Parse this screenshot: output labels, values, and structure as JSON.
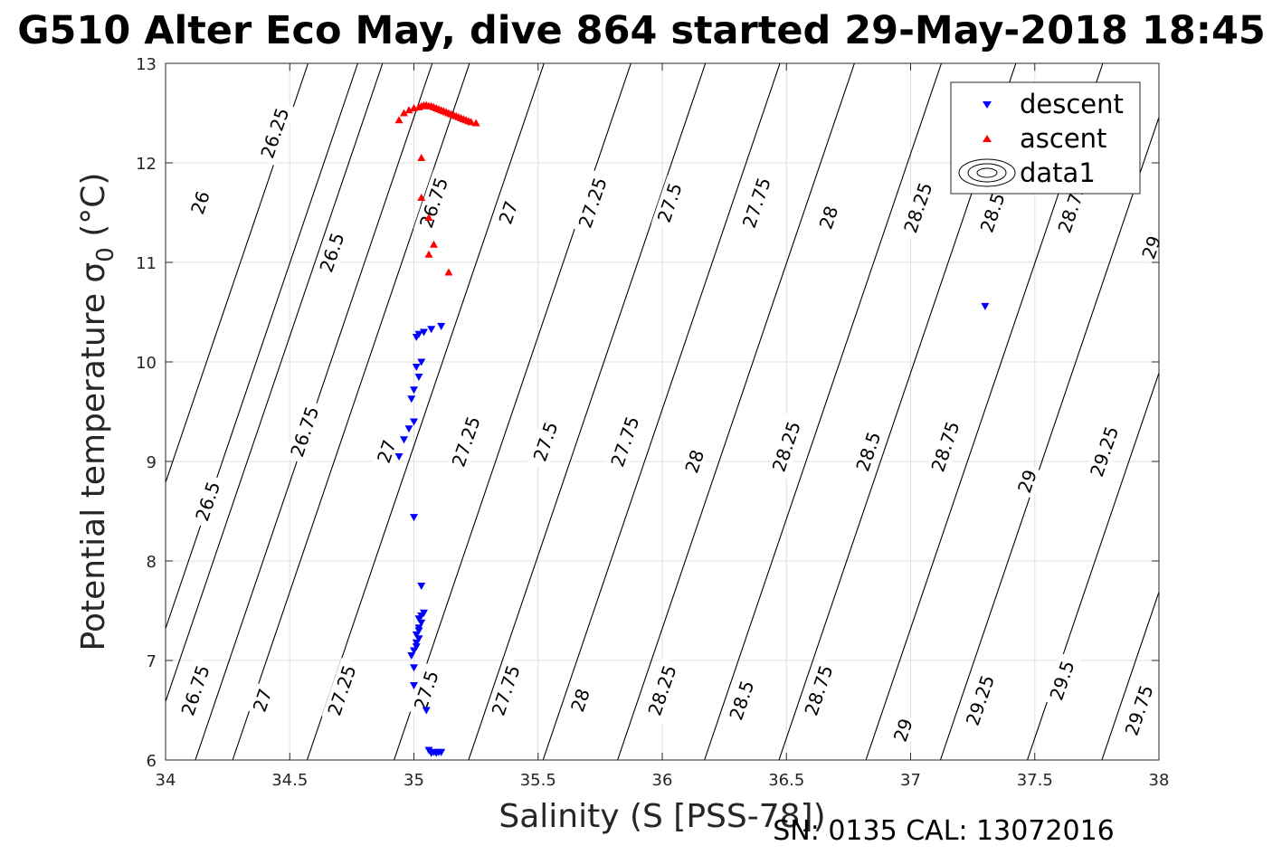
{
  "chart_data": {
    "type": "scatter",
    "title": "G510 Alter Eco May, dive 864 started 29-May-2018 18:45",
    "xlabel": "Salinity (S [PSS-78])",
    "ylabel_main": "Potential temperature ",
    "ylabel_sigma": "σ",
    "ylabel_sub": "0",
    "ylabel_unit": " (°C)",
    "footer": "SN: 0135  CAL: 13072016",
    "xlim": [
      34,
      38
    ],
    "ylim": [
      6,
      13
    ],
    "xticks": [
      "34",
      "34.5",
      "35",
      "35.5",
      "36",
      "36.5",
      "37",
      "37.5",
      "38"
    ],
    "yticks": [
      "6",
      "7",
      "8",
      "9",
      "10",
      "11",
      "12",
      "13"
    ],
    "grid": true,
    "legend": {
      "placement": "top-right",
      "entries": [
        "descent",
        "ascent",
        "data1"
      ]
    },
    "colors": {
      "descent": "#0000ff",
      "ascent": "#ff0000",
      "contour": "#000000"
    },
    "contour_levels": [
      {
        "level": "26",
        "x6": 33.82,
        "labels": [
          [
            34.14,
            11.6
          ]
        ]
      },
      {
        "level": "26.25",
        "x6": 34.12,
        "labels": [
          [
            34.44,
            12.3
          ]
        ]
      },
      {
        "level": "26.5",
        "x6": 33.62,
        "labels": [
          [
            34.17,
            8.6
          ],
          [
            34.67,
            11.1
          ]
        ]
      },
      {
        "level": "26.75",
        "x6": 33.92,
        "labels": [
          [
            34.12,
            6.7
          ],
          [
            34.56,
            9.3
          ],
          [
            35.08,
            11.6
          ]
        ]
      },
      {
        "level": "27",
        "x6": 34.27,
        "labels": [
          [
            34.39,
            6.6
          ],
          [
            34.89,
            9.1
          ],
          [
            35.38,
            11.5
          ]
        ]
      },
      {
        "level": "27.25",
        "x6": 34.57,
        "labels": [
          [
            34.71,
            6.7
          ],
          [
            35.21,
            9.2
          ],
          [
            35.72,
            11.6
          ]
        ]
      },
      {
        "level": "27.5",
        "x6": 34.92,
        "labels": [
          [
            35.05,
            6.7
          ],
          [
            35.53,
            9.2
          ],
          [
            36.03,
            11.6
          ]
        ]
      },
      {
        "level": "27.75",
        "x6": 35.22,
        "labels": [
          [
            35.37,
            6.7
          ],
          [
            35.85,
            9.2
          ],
          [
            36.38,
            11.6
          ]
        ]
      },
      {
        "level": "28",
        "x6": 35.52,
        "labels": [
          [
            35.67,
            6.6
          ],
          [
            36.13,
            9.0
          ],
          [
            36.67,
            11.45
          ]
        ]
      },
      {
        "level": "28.25",
        "x6": 35.82,
        "labels": [
          [
            36.0,
            6.7
          ],
          [
            36.5,
            9.15
          ],
          [
            37.03,
            11.55
          ]
        ]
      },
      {
        "level": "28.5",
        "x6": 36.17,
        "labels": [
          [
            36.32,
            6.6
          ],
          [
            36.83,
            9.1
          ],
          [
            37.33,
            11.5
          ]
        ]
      },
      {
        "level": "28.75",
        "x6": 36.47,
        "labels": [
          [
            36.63,
            6.7
          ],
          [
            37.14,
            9.15
          ],
          [
            37.65,
            11.55
          ]
        ]
      },
      {
        "level": "29",
        "x6": 36.82,
        "labels": [
          [
            36.97,
            6.3
          ],
          [
            37.47,
            8.8
          ],
          [
            37.97,
            11.15
          ]
        ]
      },
      {
        "level": "29.25",
        "x6": 37.12,
        "labels": [
          [
            37.28,
            6.6
          ],
          [
            37.78,
            9.1
          ]
        ]
      },
      {
        "level": "29.5",
        "x6": 37.47,
        "labels": [
          [
            37.61,
            6.8
          ]
        ]
      },
      {
        "level": "29.75",
        "x6": 37.77,
        "labels": [
          [
            37.92,
            6.5
          ]
        ]
      }
    ],
    "series": [
      {
        "name": "descent",
        "marker": "triangle-down",
        "color": "#0000ff",
        "points": [
          [
            35.11,
            10.36
          ],
          [
            35.07,
            10.33
          ],
          [
            35.04,
            10.3
          ],
          [
            35.02,
            10.28
          ],
          [
            35.01,
            10.25
          ],
          [
            35.03,
            10.0
          ],
          [
            35.01,
            9.95
          ],
          [
            35.02,
            9.85
          ],
          [
            35.0,
            9.72
          ],
          [
            34.99,
            9.63
          ],
          [
            35.0,
            9.4
          ],
          [
            34.98,
            9.33
          ],
          [
            34.96,
            9.22
          ],
          [
            34.94,
            9.05
          ],
          [
            35.0,
            8.44
          ],
          [
            35.03,
            7.75
          ],
          [
            35.04,
            7.48
          ],
          [
            35.03,
            7.45
          ],
          [
            35.02,
            7.42
          ],
          [
            35.03,
            7.38
          ],
          [
            35.02,
            7.33
          ],
          [
            35.02,
            7.3
          ],
          [
            35.01,
            7.26
          ],
          [
            35.02,
            7.22
          ],
          [
            35.01,
            7.18
          ],
          [
            35.01,
            7.14
          ],
          [
            35.0,
            7.1
          ],
          [
            34.99,
            7.05
          ],
          [
            35.0,
            6.93
          ],
          [
            35.0,
            6.75
          ],
          [
            35.05,
            6.5
          ],
          [
            35.06,
            6.1
          ],
          [
            35.08,
            6.08
          ],
          [
            35.1,
            6.08
          ],
          [
            35.11,
            6.08
          ],
          [
            35.09,
            6.07
          ],
          [
            35.07,
            6.07
          ],
          [
            37.3,
            10.56
          ]
        ]
      },
      {
        "name": "ascent",
        "marker": "triangle-up",
        "color": "#ff0000",
        "points": [
          [
            35.25,
            12.4
          ],
          [
            35.23,
            12.41
          ],
          [
            35.22,
            12.42
          ],
          [
            35.21,
            12.43
          ],
          [
            35.2,
            12.44
          ],
          [
            35.19,
            12.45
          ],
          [
            35.18,
            12.46
          ],
          [
            35.17,
            12.47
          ],
          [
            35.16,
            12.48
          ],
          [
            35.15,
            12.49
          ],
          [
            35.14,
            12.5
          ],
          [
            35.13,
            12.51
          ],
          [
            35.12,
            12.52
          ],
          [
            35.11,
            12.53
          ],
          [
            35.1,
            12.54
          ],
          [
            35.09,
            12.55
          ],
          [
            35.08,
            12.56
          ],
          [
            35.07,
            12.57
          ],
          [
            35.06,
            12.57
          ],
          [
            35.05,
            12.58
          ],
          [
            35.04,
            12.58
          ],
          [
            35.03,
            12.57
          ],
          [
            35.02,
            12.56
          ],
          [
            35.0,
            12.55
          ],
          [
            34.98,
            12.53
          ],
          [
            34.96,
            12.5
          ],
          [
            34.94,
            12.43
          ],
          [
            35.03,
            12.05
          ],
          [
            35.03,
            11.65
          ],
          [
            35.06,
            11.45
          ],
          [
            35.08,
            11.18
          ],
          [
            35.06,
            11.08
          ],
          [
            35.14,
            10.9
          ]
        ]
      }
    ]
  }
}
